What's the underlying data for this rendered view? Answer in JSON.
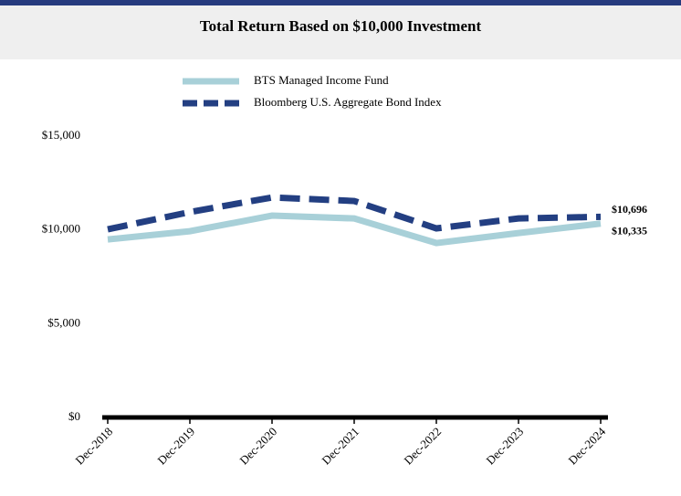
{
  "chart_data": {
    "type": "line",
    "title": "Total Return Based on $10,000 Investment",
    "categories": [
      "Dec-2018",
      "Dec-2019",
      "Dec-2020",
      "Dec-2021",
      "Dec-2022",
      "Dec-2023",
      "Dec-2024"
    ],
    "series": [
      {
        "name": "BTS Managed Income Fund",
        "color": "#a8d0d8",
        "dashed": false,
        "values": [
          9490,
          9930,
          10760,
          10610,
          9300,
          9830,
          10335
        ],
        "value_labels": [
          null,
          null,
          null,
          null,
          null,
          null,
          "$10,335"
        ]
      },
      {
        "name": "Bloomberg U.S. Aggregate Bond Index",
        "color": "#233f82",
        "dashed": true,
        "values": [
          10030,
          10950,
          11730,
          11540,
          10080,
          10610,
          10696
        ],
        "value_labels": [
          null,
          null,
          null,
          null,
          null,
          null,
          "$10,696"
        ]
      }
    ],
    "ylim": [
      0,
      15000
    ],
    "yticks": [
      {
        "value": 0,
        "label": "$0"
      },
      {
        "value": 5000,
        "label": "$5,000"
      },
      {
        "value": 10000,
        "label": "$10,000"
      },
      {
        "value": 15000,
        "label": "$15,000"
      }
    ]
  }
}
